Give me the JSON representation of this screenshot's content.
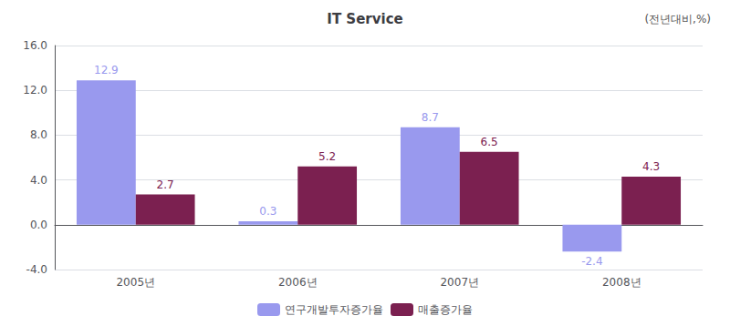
{
  "chart_data": {
    "type": "bar",
    "title": "IT Service",
    "subtitle": "(전년대비,%)",
    "categories": [
      "2005년",
      "2006년",
      "2007년",
      "2008년"
    ],
    "series": [
      {
        "name": "연구개발투자증가율",
        "color": "#9999EE",
        "values": [
          12.9,
          0.3,
          8.7,
          -2.4
        ]
      },
      {
        "name": "매출증가율",
        "color": "#7B2050",
        "values": [
          2.7,
          5.2,
          6.5,
          4.3
        ]
      }
    ],
    "ylim": [
      -4.0,
      16.0
    ],
    "yticks": [
      {
        "value": -4.0,
        "label": "-4.0"
      },
      {
        "value": 0.0,
        "label": "0.0"
      },
      {
        "value": 4.0,
        "label": "4.0"
      },
      {
        "value": 8.0,
        "label": "8.0"
      },
      {
        "value": 12.0,
        "label": "12.0"
      },
      {
        "value": 16.0,
        "label": "16.0"
      }
    ],
    "grid": true,
    "legend": "bottom",
    "data_labels": true
  }
}
